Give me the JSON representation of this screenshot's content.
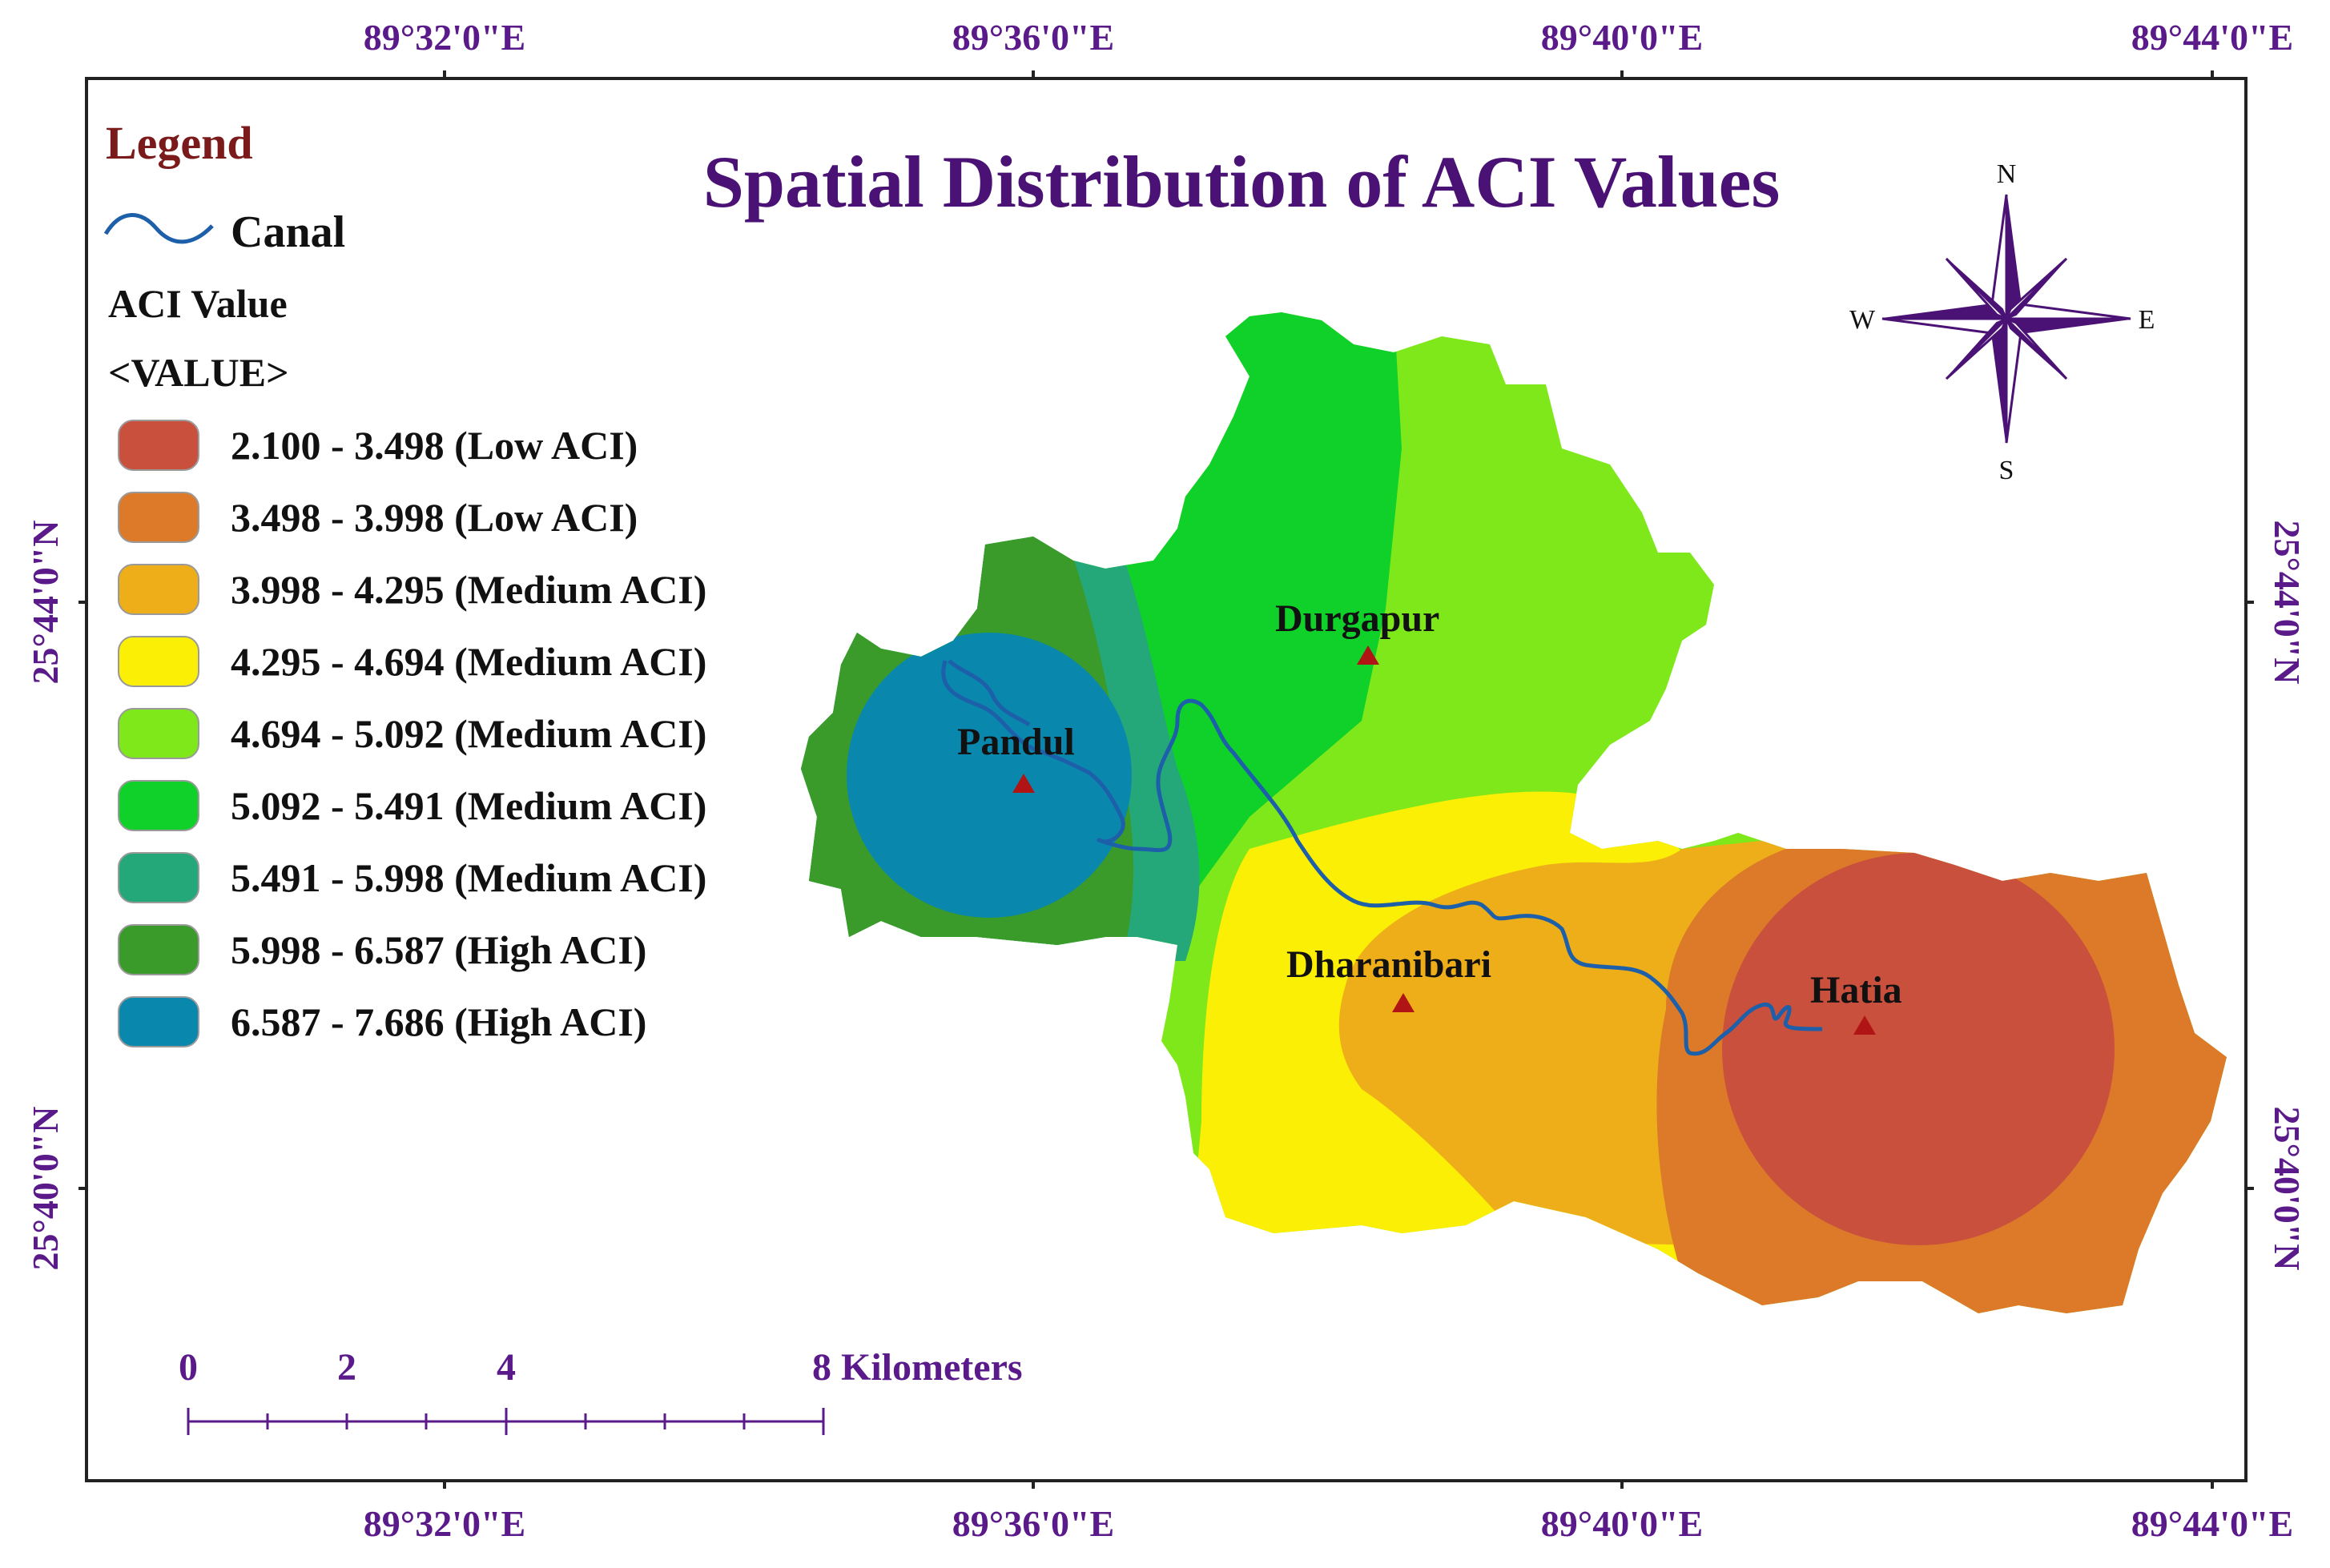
{
  "title": "Spatial Distribution of ACI Values",
  "coordinates": {
    "top_longitudes": [
      "89°32'0\"E",
      "89°36'0\"E",
      "89°40'0\"E",
      "89°44'0\"E"
    ],
    "bottom_longitudes": [
      "89°32'0\"E",
      "89°36'0\"E",
      "89°40'0\"E",
      "89°44'0\"E"
    ],
    "left_latitudes": [
      "25°44'0\"N",
      "25°40'0\"N"
    ],
    "right_latitudes": [
      "25°44'0\"N",
      "25°40'0\"N"
    ]
  },
  "legend": {
    "title": "Legend",
    "canal_label": "Canal",
    "field_label": "ACI Value",
    "value_label": "<VALUE>",
    "classes": [
      {
        "label": "2.100 - 3.498 (Low ACI)",
        "color": "#c9503d"
      },
      {
        "label": "3.498 - 3.998 (Low ACI)",
        "color": "#dc7a2a"
      },
      {
        "label": "3.998 - 4.295 (Medium ACI)",
        "color": "#eeae1a"
      },
      {
        "label": "4.295 - 4.694 (Medium ACI)",
        "color": "#fbef05"
      },
      {
        "label": "4.694 - 5.092 (Medium ACI)",
        "color": "#7ee81a"
      },
      {
        "label": "5.092 - 5.491 (Medium ACI)",
        "color": "#0fd12a"
      },
      {
        "label": "5.491 - 5.998 (Medium ACI)",
        "color": "#24a87a"
      },
      {
        "label": "5.998 - 6.587 (High ACI)",
        "color": "#3a9b2a"
      },
      {
        "label": "6.587 - 7.686 (High ACI)",
        "color": "#0a87ad"
      }
    ]
  },
  "places": {
    "pandul": "Pandul",
    "durgapur": "Durgapur",
    "dharanibari": "Dharanibari",
    "hatia": "Hatia"
  },
  "compass": {
    "n": "N",
    "s": "S",
    "e": "E",
    "w": "W"
  },
  "scale": {
    "ticks": [
      "0",
      "2",
      "4",
      "8 Kilometers"
    ]
  },
  "colors": {
    "canal": "#1d5fa8",
    "marker": "#b01414",
    "frame": "#222222",
    "accent": "#4b1275"
  }
}
